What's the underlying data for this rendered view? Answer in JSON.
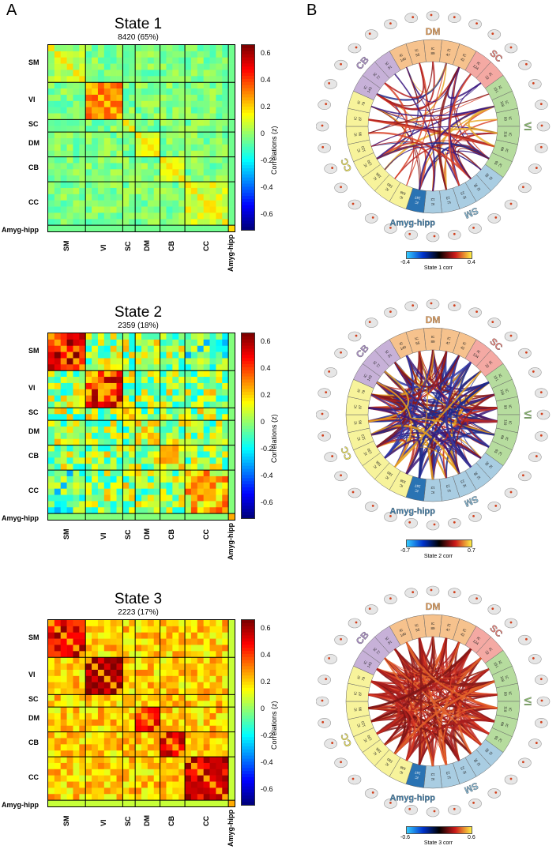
{
  "panels": {
    "a": "A",
    "b": "B"
  },
  "networks": [
    "SM",
    "VI",
    "SC",
    "DM",
    "CB",
    "CC",
    "Amyg-hipp"
  ],
  "colorbar_label": "Correlations (z)",
  "colorbar_ticks": [
    "0.6",
    "0.4",
    "0.2",
    "0",
    "-0.2",
    "-0.4",
    "-0.6"
  ],
  "states": [
    {
      "title": "State 1",
      "count": "8420 (65%)",
      "circle_cbar_min": "-0.4",
      "circle_cbar_max": "0.4",
      "circle_cbar_label": "State 1 corr"
    },
    {
      "title": "State 2",
      "count": "2359 (18%)",
      "circle_cbar_min": "-0.7",
      "circle_cbar_max": "0.7",
      "circle_cbar_label": "State 2 corr"
    },
    {
      "title": "State 3",
      "count": "2223 (17%)",
      "circle_cbar_min": "-0.6",
      "circle_cbar_max": "0.6",
      "circle_cbar_label": "State 3 corr"
    }
  ],
  "circle": {
    "amyg_label": "Amyg-hipp",
    "ic_prefix": "IC",
    "segments": [
      {
        "net": "DM",
        "ics": [
          "140",
          "55",
          "89",
          "47",
          "42"
        ]
      },
      {
        "net": "SC",
        "ics": [
          "124",
          "32"
        ]
      },
      {
        "net": "VI",
        "ics": [
          "151",
          "118",
          "93",
          "110",
          "68",
          "65"
        ]
      },
      {
        "net": "SM",
        "ics": [
          "38",
          "36",
          "23",
          "13",
          "12"
        ]
      },
      {
        "net": "Amyg-hipp",
        "ics": [
          "167"
        ]
      },
      {
        "net": "CC",
        "ics": [
          "108",
          "180",
          "186",
          "130",
          "123",
          "96",
          "87",
          "79"
        ]
      },
      {
        "net": "CB",
        "ics": [
          "143",
          "77",
          "51"
        ]
      }
    ],
    "net_colors": {
      "SM": "#a9cde2",
      "VI": "#b6dc9e",
      "SC": "#f4a9a3",
      "DM": "#f6c28d",
      "CB": "#c7b1d8",
      "CC": "#f7f39b",
      "Amyg-hipp": "#2a73b3"
    },
    "net_label_colors": {
      "SM": "#7fb2cf",
      "VI": "#8cc26e",
      "SC": "#e67e76",
      "DM": "#e8a15c",
      "CB": "#a88cc4",
      "CC": "#e8df5c",
      "Amyg-hipp": "#3c7fae"
    }
  }
}
